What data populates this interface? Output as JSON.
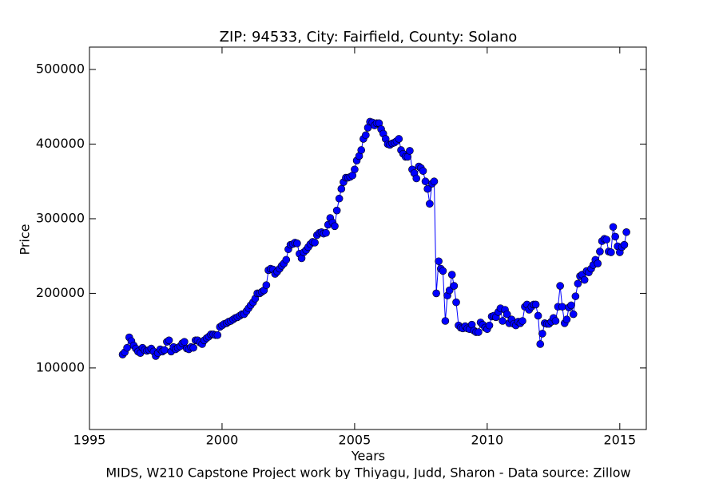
{
  "chart_data": {
    "type": "line",
    "title": "ZIP: 94533, City: Fairfield, County: Solano",
    "x_label": "Years",
    "y_label": "Price",
    "caption": "MIDS, W210 Capstone Project work by Thiyagu, Judd, Sharon  -  Data source: Zillow",
    "color": "#0000ff",
    "marker": true,
    "grid": false,
    "xlim": [
      1995,
      2016
    ],
    "xticks": [
      1995,
      2000,
      2005,
      2010,
      2015
    ],
    "ylim": [
      17500,
      530000
    ],
    "yticks": [
      100000,
      200000,
      300000,
      400000,
      500000
    ],
    "x": [
      1996.25,
      1996.33,
      1996.42,
      1996.5,
      1996.58,
      1996.67,
      1996.75,
      1996.83,
      1996.92,
      1997,
      1997.08,
      1997.17,
      1997.25,
      1997.33,
      1997.42,
      1997.5,
      1997.58,
      1997.67,
      1997.75,
      1997.83,
      1997.92,
      1998,
      1998.08,
      1998.17,
      1998.25,
      1998.33,
      1998.42,
      1998.5,
      1998.58,
      1998.67,
      1998.75,
      1998.83,
      1998.92,
      1999,
      1999.08,
      1999.17,
      1999.25,
      1999.33,
      1999.42,
      1999.5,
      1999.58,
      1999.67,
      1999.75,
      1999.83,
      1999.92,
      2000,
      2000.08,
      2000.17,
      2000.25,
      2000.33,
      2000.42,
      2000.5,
      2000.58,
      2000.67,
      2000.75,
      2000.83,
      2000.92,
      2001,
      2001.08,
      2001.17,
      2001.25,
      2001.33,
      2001.42,
      2001.5,
      2001.58,
      2001.67,
      2001.75,
      2001.83,
      2001.92,
      2002,
      2002.08,
      2002.17,
      2002.25,
      2002.33,
      2002.42,
      2002.5,
      2002.58,
      2002.67,
      2002.75,
      2002.83,
      2002.92,
      2003,
      2003.08,
      2003.17,
      2003.25,
      2003.33,
      2003.42,
      2003.5,
      2003.58,
      2003.67,
      2003.75,
      2003.83,
      2003.92,
      2004,
      2004.08,
      2004.17,
      2004.25,
      2004.33,
      2004.42,
      2004.5,
      2004.58,
      2004.67,
      2004.75,
      2004.83,
      2004.92,
      2005,
      2005.08,
      2005.17,
      2005.25,
      2005.33,
      2005.42,
      2005.5,
      2005.58,
      2005.67,
      2005.75,
      2005.83,
      2005.92,
      2006,
      2006.08,
      2006.17,
      2006.25,
      2006.33,
      2006.42,
      2006.5,
      2006.58,
      2006.67,
      2006.75,
      2006.83,
      2006.92,
      2007,
      2007.08,
      2007.17,
      2007.25,
      2007.33,
      2007.42,
      2007.5,
      2007.58,
      2007.67,
      2007.75,
      2007.83,
      2007.92,
      2008,
      2008.08,
      2008.17,
      2008.25,
      2008.33,
      2008.42,
      2008.5,
      2008.58,
      2008.67,
      2008.75,
      2008.83,
      2008.92,
      2009,
      2009.08,
      2009.17,
      2009.25,
      2009.33,
      2009.42,
      2009.5,
      2009.58,
      2009.67,
      2009.75,
      2009.83,
      2009.92,
      2010,
      2010.08,
      2010.17,
      2010.25,
      2010.33,
      2010.42,
      2010.5,
      2010.58,
      2010.67,
      2010.75,
      2010.83,
      2010.92,
      2011,
      2011.08,
      2011.17,
      2011.25,
      2011.33,
      2011.42,
      2011.5,
      2011.58,
      2011.67,
      2011.75,
      2011.83,
      2011.92,
      2012,
      2012.08,
      2012.17,
      2012.25,
      2012.33,
      2012.42,
      2012.5,
      2012.58,
      2012.67,
      2012.75,
      2012.83,
      2012.92,
      2013,
      2013.08,
      2013.17,
      2013.25,
      2013.33,
      2013.42,
      2013.5,
      2013.58,
      2013.67,
      2013.75,
      2013.83,
      2013.92,
      2014,
      2014.08,
      2014.17,
      2014.25,
      2014.33,
      2014.42,
      2014.5,
      2014.58,
      2014.67,
      2014.75,
      2014.83,
      2014.92,
      2015,
      2015.08,
      2015.17,
      2015.25
    ],
    "values": [
      118000,
      121000,
      127000,
      141000,
      136000,
      130000,
      126000,
      122000,
      120000,
      127000,
      124000,
      123000,
      124000,
      126000,
      122000,
      116000,
      120000,
      125000,
      122000,
      124000,
      135000,
      137000,
      122000,
      128000,
      125000,
      127000,
      129000,
      133000,
      135000,
      126000,
      125000,
      128000,
      127000,
      137000,
      137000,
      134000,
      132000,
      137000,
      140000,
      142000,
      145000,
      145000,
      144000,
      144000,
      155000,
      157000,
      159000,
      160000,
      162000,
      163000,
      165000,
      167000,
      168000,
      170000,
      172000,
      172000,
      176000,
      180000,
      184000,
      188000,
      193000,
      200000,
      200000,
      202000,
      204000,
      211000,
      231000,
      233000,
      232000,
      226000,
      229000,
      233000,
      237000,
      240000,
      245000,
      259000,
      265000,
      266000,
      268000,
      267000,
      253000,
      247000,
      255000,
      258000,
      262000,
      266000,
      269000,
      268000,
      278000,
      281000,
      282000,
      280000,
      281000,
      292000,
      301000,
      295000,
      290000,
      311000,
      327000,
      340000,
      349000,
      355000,
      355000,
      356000,
      358000,
      366000,
      378000,
      384000,
      392000,
      407000,
      412000,
      422000,
      430000,
      429000,
      425000,
      428000,
      428000,
      420000,
      414000,
      407000,
      400000,
      399000,
      401000,
      402000,
      404000,
      407000,
      392000,
      387000,
      383000,
      383000,
      391000,
      366000,
      361000,
      354000,
      370000,
      368000,
      364000,
      350000,
      340000,
      320000,
      347000,
      350000,
      200000,
      243000,
      233000,
      230000,
      163000,
      197000,
      204000,
      225000,
      210000,
      188000,
      157000,
      154000,
      153000,
      156000,
      153000,
      152000,
      158000,
      150000,
      148000,
      148000,
      161000,
      158000,
      154000,
      152000,
      157000,
      169000,
      170000,
      168000,
      175000,
      180000,
      163000,
      178000,
      172000,
      160000,
      165000,
      159000,
      157000,
      162000,
      160000,
      163000,
      182000,
      185000,
      178000,
      182000,
      185000,
      185000,
      170000,
      132000,
      146000,
      160000,
      159000,
      159000,
      162000,
      167000,
      163000,
      182000,
      210000,
      182000,
      160000,
      165000,
      181000,
      184000,
      172000,
      196000,
      213000,
      223000,
      225000,
      218000,
      230000,
      228000,
      233000,
      238000,
      245000,
      240000,
      256000,
      270000,
      273000,
      272000,
      256000,
      255000,
      289000,
      276000,
      263000,
      255000,
      262000,
      265000,
      282000
    ]
  }
}
